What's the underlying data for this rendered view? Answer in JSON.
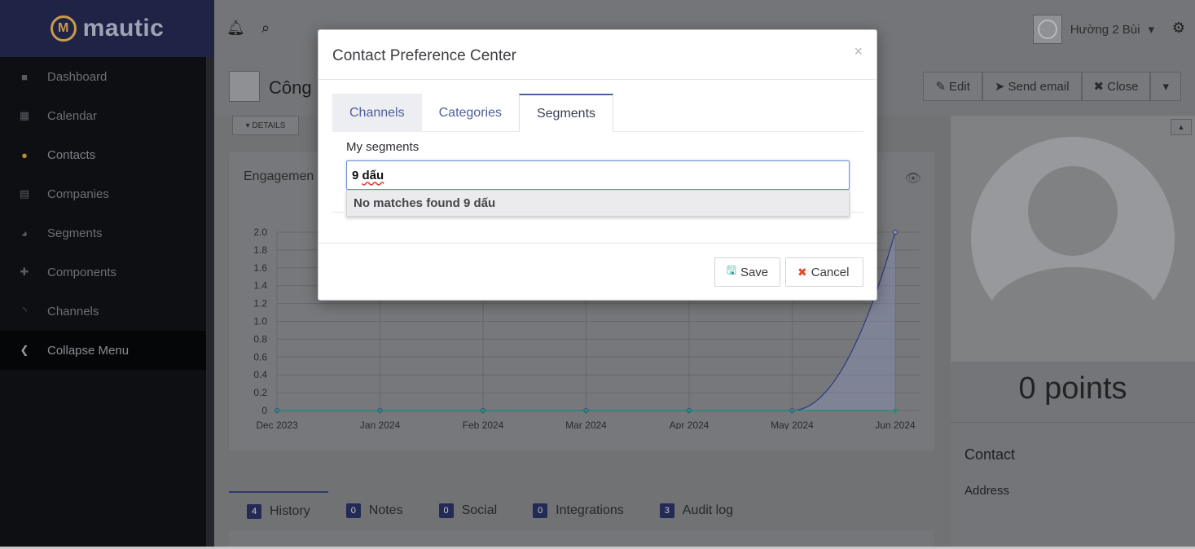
{
  "brand": {
    "name": "mautic"
  },
  "sidebar": {
    "items": [
      {
        "label": "Dashboard",
        "icon": "grid-icon"
      },
      {
        "label": "Calendar",
        "icon": "calendar-icon"
      },
      {
        "label": "Contacts",
        "icon": "user-icon"
      },
      {
        "label": "Companies",
        "icon": "building-icon"
      },
      {
        "label": "Segments",
        "icon": "pie-chart-icon"
      },
      {
        "label": "Components",
        "icon": "puzzle-icon"
      },
      {
        "label": "Channels",
        "icon": "rss-icon"
      },
      {
        "label": "Collapse Menu",
        "icon": "chevron-left-icon"
      }
    ]
  },
  "topbar": {
    "user_name": "Hường 2 Bùi"
  },
  "contact": {
    "name": "Công",
    "details_label": "DETAILS",
    "buttons": {
      "edit": "Edit",
      "send_email": "Send email",
      "close": "Close"
    },
    "engagement_title": "Engagemen",
    "points": "0 points",
    "contact_heading": "Contact",
    "address_label": "Address"
  },
  "bottom_tabs": [
    {
      "count": "4",
      "label": "History"
    },
    {
      "count": "0",
      "label": "Notes"
    },
    {
      "count": "0",
      "label": "Social"
    },
    {
      "count": "0",
      "label": "Integrations"
    },
    {
      "count": "3",
      "label": "Audit log"
    }
  ],
  "modal": {
    "title": "Contact Preference Center",
    "close": "×",
    "tabs": {
      "channels": "Channels",
      "categories": "Categories",
      "segments": "Segments"
    },
    "segments_label": "My segments",
    "input_prefix": "9 ",
    "input_word": "dấu",
    "no_matches": "No matches found 9 dấu",
    "save": "Save",
    "cancel": "Cancel"
  },
  "chart_data": {
    "type": "line",
    "x": [
      "Dec 2023",
      "Jan 2024",
      "Feb 2024",
      "Mar 2024",
      "Apr 2024",
      "May 2024",
      "Jun 2024"
    ],
    "series": [
      {
        "values": [
          0,
          0,
          0,
          0,
          0,
          0,
          2
        ]
      },
      {
        "values": [
          0,
          0,
          0,
          0,
          0,
          0,
          0
        ]
      }
    ],
    "yticks": [
      "0",
      "0.2",
      "0.4",
      "0.6",
      "0.8",
      "1.0",
      "1.2",
      "1.4",
      "1.6",
      "1.8",
      "2.0"
    ],
    "ylim": [
      0,
      2
    ],
    "grid": true,
    "colors": {
      "series1": "#2e3a7a",
      "series2": "#2a8a7a",
      "fill": "#8a91b8"
    }
  }
}
